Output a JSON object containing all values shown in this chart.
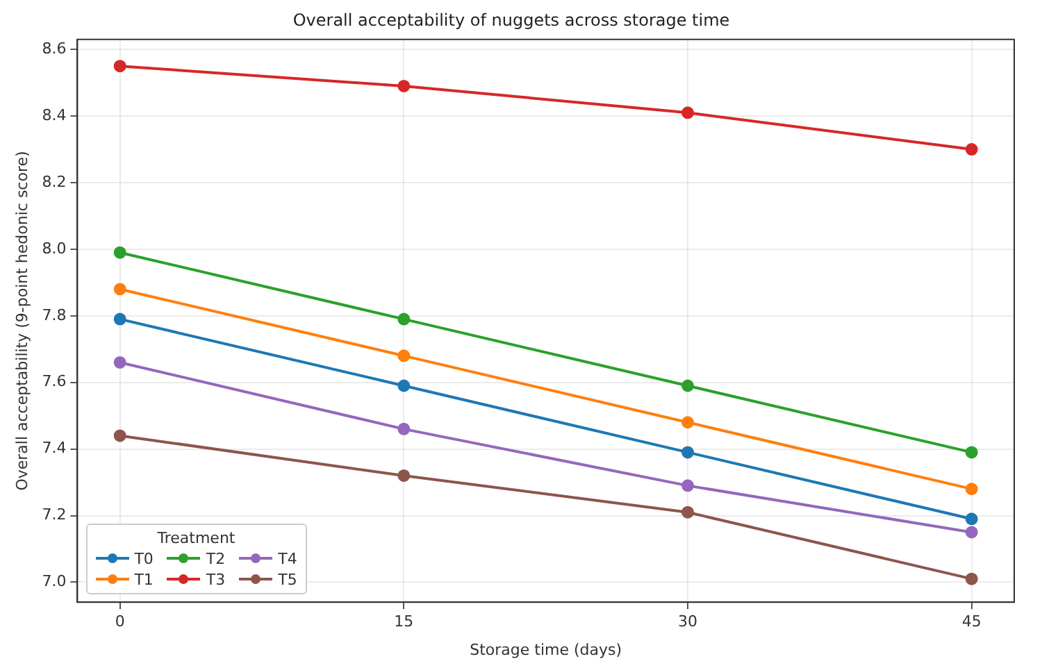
{
  "chart_data": {
    "type": "line",
    "title": "Overall acceptability of nuggets across storage time",
    "xlabel": "Storage time (days)",
    "ylabel": "Overall acceptability (9-point hedonic score)",
    "legend_title": "Treatment",
    "x": [
      0,
      15,
      30,
      45
    ],
    "xlim": [
      -2.25,
      47.25
    ],
    "xticks": [
      0,
      15,
      30,
      45
    ],
    "ylim": [
      6.94,
      8.63
    ],
    "yticks": [
      {
        "value": 7.0,
        "label": "7.0"
      },
      {
        "value": 7.2,
        "label": "7.2"
      },
      {
        "value": 7.4,
        "label": "7.4"
      },
      {
        "value": 7.6,
        "label": "7.6"
      },
      {
        "value": 7.8,
        "label": "7.8"
      },
      {
        "value": 8.0,
        "label": "8.0"
      },
      {
        "value": 8.2,
        "label": "8.2"
      },
      {
        "value": 8.4,
        "label": "8.4"
      },
      {
        "value": 8.6,
        "label": "8.6"
      }
    ],
    "grid": true,
    "legend": "bottom left",
    "marker": "circle",
    "line_style": "solid",
    "series": [
      {
        "name": "T0",
        "color": "#1f77b4",
        "values": [
          7.79,
          7.59,
          7.39,
          7.19
        ]
      },
      {
        "name": "T1",
        "color": "#ff7f0e",
        "values": [
          7.88,
          7.68,
          7.48,
          7.28
        ]
      },
      {
        "name": "T2",
        "color": "#2ca02c",
        "values": [
          7.99,
          7.79,
          7.59,
          7.39
        ]
      },
      {
        "name": "T3",
        "color": "#d62728",
        "values": [
          8.55,
          8.49,
          8.41,
          8.3
        ]
      },
      {
        "name": "T4",
        "color": "#9467bd",
        "values": [
          7.66,
          7.46,
          7.29,
          7.15
        ]
      },
      {
        "name": "T5",
        "color": "#8c564b",
        "values": [
          7.44,
          7.32,
          7.21,
          7.01
        ]
      }
    ]
  }
}
